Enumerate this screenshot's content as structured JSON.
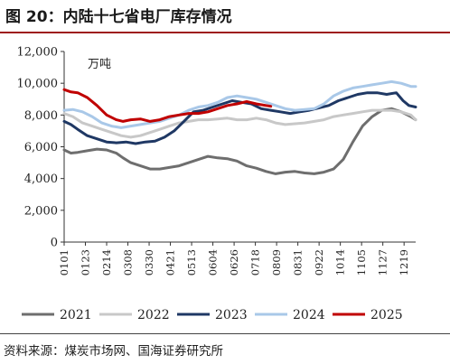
{
  "title": "图 20：内陆十七省电厂库存情况",
  "source": "资料来源：煤炭市场网、国海证券研究所",
  "chart_data": {
    "type": "line",
    "unit": "万吨",
    "ylim": [
      0,
      12000
    ],
    "yticks": [
      "0",
      "2,000",
      "4,000",
      "6,000",
      "8,000",
      "10,000",
      "12,000"
    ],
    "ytick_values": [
      0,
      2000,
      4000,
      6000,
      8000,
      10000,
      12000
    ],
    "xlim": [
      1,
      365
    ],
    "xticks": [
      "0101",
      "0123",
      "0214",
      "0308",
      "0330",
      "0421",
      "0513",
      "0604",
      "0626",
      "0718",
      "0809",
      "0831",
      "0922",
      "1014",
      "1105",
      "1127",
      "1219"
    ],
    "xtick_days": [
      1,
      23,
      45,
      67,
      89,
      111,
      133,
      155,
      177,
      199,
      221,
      243,
      265,
      287,
      309,
      331,
      353
    ],
    "legend_position": "bottom",
    "series": [
      {
        "name": "2021",
        "color": "#6e6e6e",
        "x": [
          1,
          8,
          15,
          25,
          35,
          45,
          55,
          62,
          70,
          80,
          90,
          100,
          110,
          120,
          130,
          140,
          150,
          160,
          170,
          180,
          190,
          200,
          210,
          220,
          230,
          240,
          250,
          260,
          270,
          280,
          290,
          300,
          310,
          320,
          330,
          340,
          350,
          360,
          365
        ],
        "y": [
          5800,
          5600,
          5650,
          5750,
          5850,
          5800,
          5600,
          5300,
          5000,
          4800,
          4600,
          4600,
          4700,
          4800,
          5000,
          5200,
          5400,
          5300,
          5250,
          5100,
          4800,
          4650,
          4450,
          4300,
          4400,
          4450,
          4350,
          4300,
          4400,
          4600,
          5200,
          6300,
          7300,
          7900,
          8300,
          8400,
          8200,
          7900,
          7700
        ]
      },
      {
        "name": "2022",
        "color": "#c8c8c8",
        "x": [
          1,
          10,
          20,
          30,
          40,
          50,
          60,
          70,
          80,
          90,
          100,
          110,
          120,
          130,
          140,
          150,
          160,
          170,
          180,
          190,
          200,
          210,
          220,
          230,
          240,
          250,
          260,
          270,
          280,
          290,
          300,
          310,
          320,
          330,
          340,
          350,
          360,
          365
        ],
        "y": [
          8100,
          7900,
          7500,
          7300,
          7100,
          6900,
          6700,
          6600,
          6700,
          6900,
          7100,
          7300,
          7500,
          7600,
          7700,
          7700,
          7750,
          7800,
          7700,
          7700,
          7800,
          7700,
          7500,
          7400,
          7450,
          7500,
          7600,
          7700,
          7900,
          8000,
          8100,
          8200,
          8300,
          8300,
          8300,
          8200,
          8000,
          7700
        ]
      },
      {
        "name": "2023",
        "color": "#1f3864",
        "x": [
          1,
          8,
          15,
          25,
          35,
          45,
          55,
          65,
          75,
          85,
          95,
          105,
          115,
          125,
          135,
          145,
          155,
          165,
          175,
          185,
          195,
          205,
          215,
          225,
          235,
          245,
          255,
          265,
          275,
          285,
          295,
          305,
          315,
          325,
          335,
          345,
          352,
          358,
          365
        ],
        "y": [
          7600,
          7400,
          7100,
          6700,
          6500,
          6300,
          6250,
          6300,
          6200,
          6300,
          6350,
          6600,
          7000,
          7600,
          8200,
          8300,
          8500,
          8700,
          8900,
          8800,
          8700,
          8400,
          8300,
          8200,
          8100,
          8200,
          8300,
          8450,
          8600,
          8900,
          9100,
          9300,
          9400,
          9400,
          9300,
          9400,
          8900,
          8600,
          8500
        ]
      },
      {
        "name": "2024",
        "color": "#a9c8e8",
        "x": [
          1,
          10,
          20,
          30,
          40,
          50,
          60,
          70,
          80,
          90,
          100,
          110,
          120,
          130,
          140,
          150,
          160,
          170,
          180,
          190,
          200,
          210,
          220,
          230,
          240,
          250,
          260,
          270,
          280,
          290,
          300,
          310,
          320,
          330,
          340,
          350,
          360,
          365
        ],
        "y": [
          8300,
          8350,
          8200,
          7900,
          7500,
          7300,
          7200,
          7300,
          7400,
          7500,
          7600,
          7800,
          8000,
          8300,
          8500,
          8600,
          8800,
          9100,
          9200,
          9100,
          9000,
          8800,
          8600,
          8400,
          8300,
          8350,
          8400,
          8700,
          9200,
          9500,
          9700,
          9800,
          9900,
          10000,
          10100,
          10000,
          9800,
          9800
        ]
      },
      {
        "name": "2025",
        "color": "#c00000",
        "x": [
          1,
          8,
          15,
          25,
          35,
          45,
          55,
          62,
          70,
          80,
          90,
          100,
          110,
          120,
          130,
          140,
          150,
          160,
          170,
          180,
          190,
          200,
          210,
          215
        ],
        "y": [
          9600,
          9450,
          9400,
          9100,
          8600,
          8000,
          7700,
          7600,
          7700,
          7750,
          7600,
          7700,
          7900,
          8000,
          8100,
          8100,
          8200,
          8400,
          8600,
          8700,
          8850,
          8700,
          8600,
          8550
        ]
      }
    ]
  }
}
